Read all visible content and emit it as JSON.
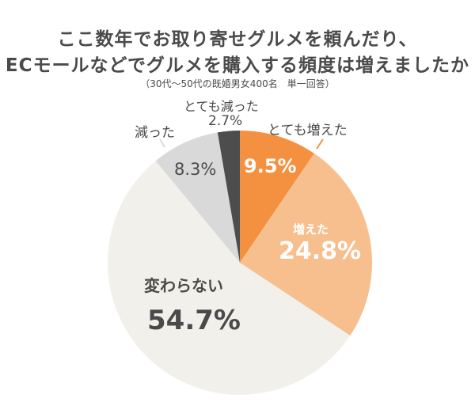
{
  "title_line1": "ここ数年でお取り寄せグルメを頼んだり、",
  "title_line2": "ECモールなどでグルメを購入する頻度は増えましたか",
  "subtitle": "（30代〜50代の既婚男女400名　単一回答）",
  "labels": {
    "very_increased": {
      "name": "とても増えた",
      "value": "9.5%"
    },
    "increased": {
      "name": "増えた",
      "value": "24.8%"
    },
    "unchanged": {
      "name": "変わらない",
      "value": "54.7%"
    },
    "decreased": {
      "name": "減った",
      "value": "8.3%"
    },
    "very_decreased": {
      "name": "とても減った",
      "value": "2.7%"
    }
  },
  "colors": {
    "very_increased": "#f39140",
    "increased": "#f7bf8e",
    "unchanged": "#f2f0ea",
    "decreased": "#d9d9d9",
    "very_decreased": "#4d4d4d"
  },
  "chart_data": {
    "type": "pie",
    "title": "ここ数年でお取り寄せグルメを頼んだり、ECモールなどでグルメを購入する頻度は増えましたか",
    "subtitle": "（30代〜50代の既婚男女400名　単一回答）",
    "categories": [
      "とても増えた",
      "増えた",
      "変わらない",
      "減った",
      "とても減った"
    ],
    "values": [
      9.5,
      24.8,
      54.7,
      8.3,
      2.7
    ],
    "colors": [
      "#f39140",
      "#f7bf8e",
      "#f2f0ea",
      "#d9d9d9",
      "#4d4d4d"
    ],
    "start_angle": "12 o'clock",
    "direction": "clockwise",
    "unit": "%"
  }
}
